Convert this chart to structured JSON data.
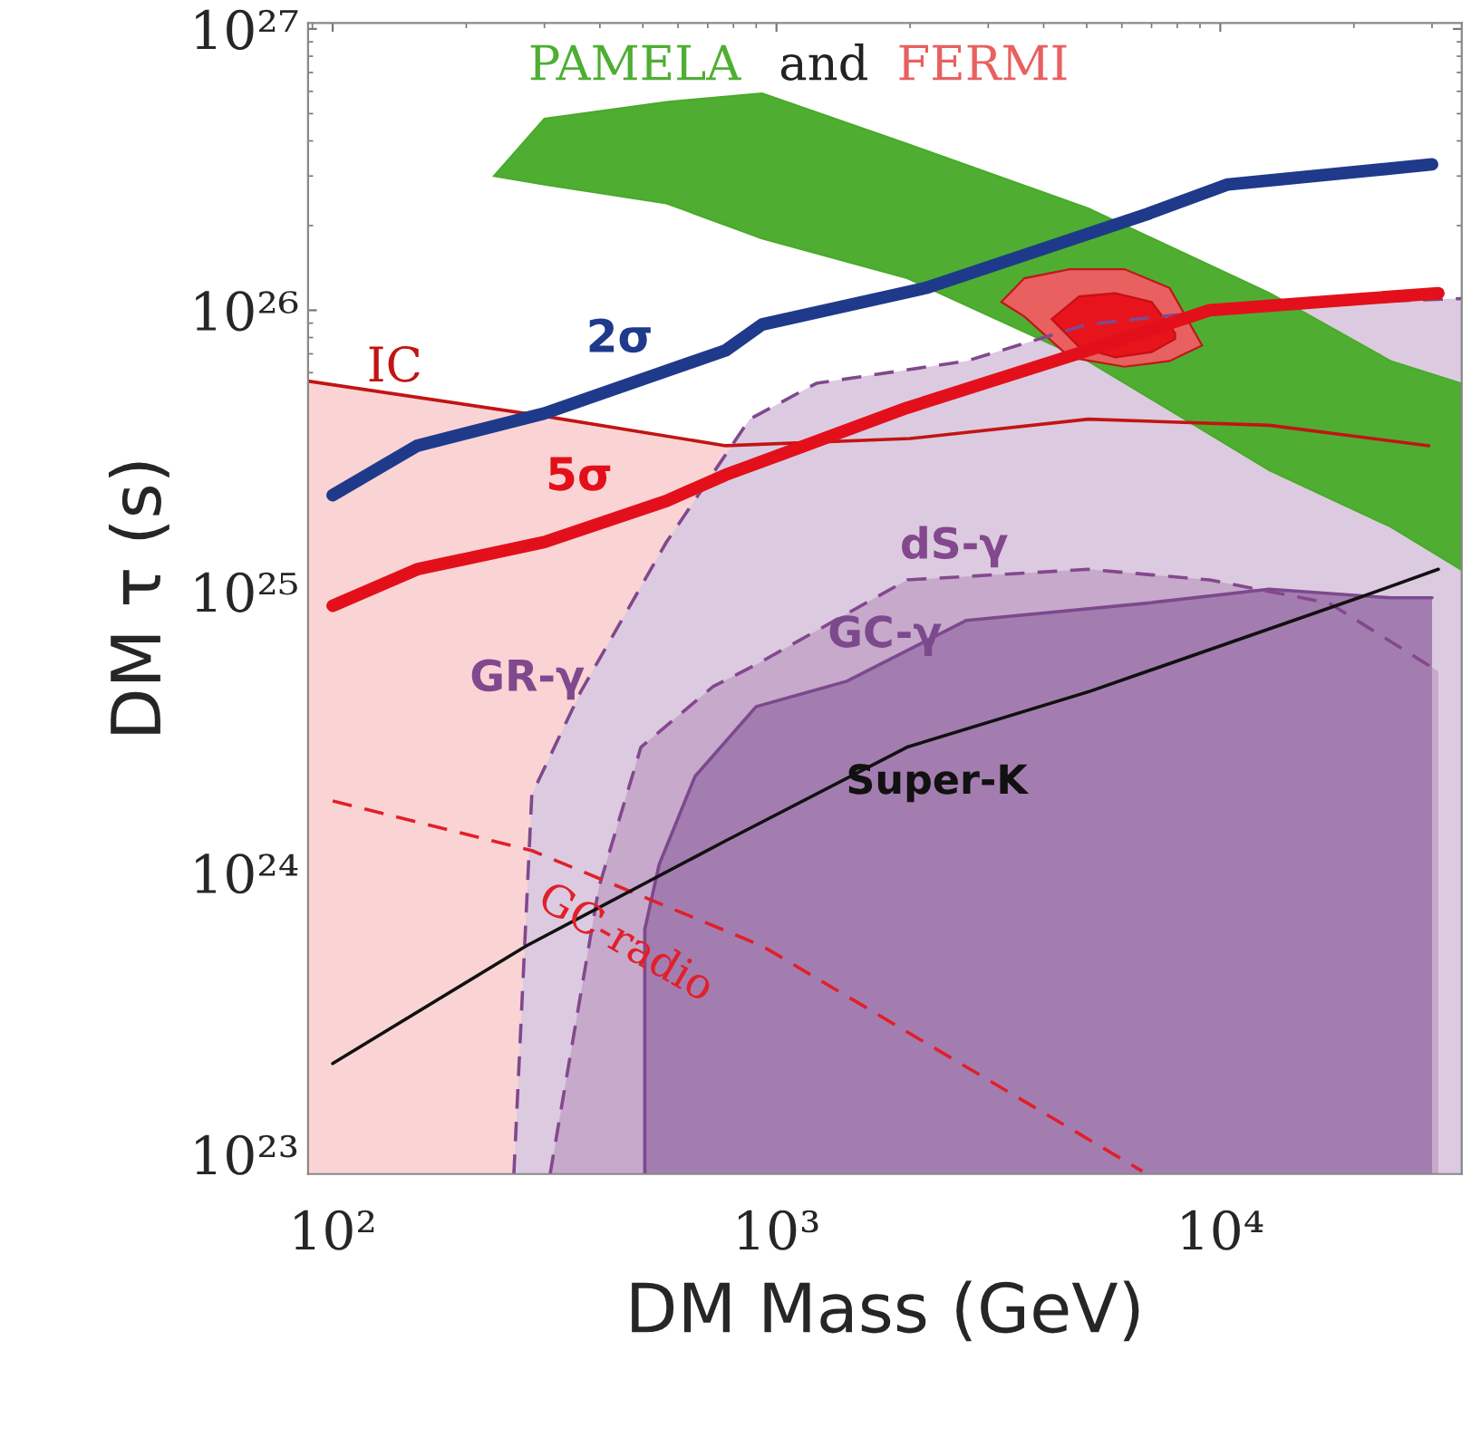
{
  "chart_data": {
    "type": "line",
    "xlabel": "DM Mass (GeV)",
    "ylabel": "DM τ (s)",
    "log": "xy",
    "grid": false,
    "legend": false,
    "xlim": [
      88,
      35000
    ],
    "ylim": [
      8.5e+22,
      1.05e+27
    ],
    "xticks": [
      {
        "value": 100,
        "label": "10²"
      },
      {
        "value": 1000,
        "label": "10³"
      },
      {
        "value": 10000,
        "label": "10⁴"
      }
    ],
    "yticks": [
      {
        "value": 1e+23,
        "label": "10²³"
      },
      {
        "value": 1e+24,
        "label": "10²⁴"
      },
      {
        "value": 1e+25,
        "label": "10²⁵"
      },
      {
        "value": 1e+26,
        "label": "10²⁶"
      },
      {
        "value": 1e+27,
        "label": "10²⁷"
      }
    ],
    "annotations": [
      "and"
    ],
    "series": [
      {
        "type": "area",
        "name": "IC",
        "color": "#fad4d4",
        "line_style": "solid",
        "x": [
          88,
          300,
          768,
          2000,
          5040,
          12900,
          29500
        ],
        "values": [
          5.6e+25,
          4.2e+25,
          3.3e+25,
          3.5e+25,
          4.1e+25,
          3.9e+25,
          3.3e+25
        ]
      },
      {
        "type": "area",
        "name": "GR-γ",
        "color": "#dccbe0",
        "line_style": "dashed",
        "x": [
          256,
          281,
          362,
          565,
          870,
          1230,
          2680,
          5000,
          10000,
          20000,
          35000
        ],
        "values": [
          8.5e+22,
          1.9e+24,
          4.4e+24,
          1.5e+25,
          4.1e+25,
          5.5e+25,
          6.6e+25,
          8.9e+25,
          1e+26,
          1.07e+26,
          1.1e+26
        ]
      },
      {
        "type": "area",
        "name": "dS-γ",
        "color": "#c7a9cc",
        "line_style": "dashed",
        "x": [
          309,
          398,
          495,
          720,
          900,
          1970,
          5040,
          9460,
          17600,
          31000
        ],
        "values": [
          8.5e+22,
          8.9e+23,
          2.8e+24,
          4.6e+24,
          5.5e+24,
          1.1e+25,
          1.2e+25,
          1.1e+25,
          9.1e+24,
          5.2e+24
        ]
      },
      {
        "type": "area",
        "name": "GC-γ",
        "color": "#a47db0",
        "line_style": "solid",
        "x": [
          505,
          505,
          544,
          655,
          900,
          1440,
          2680,
          6860,
          12900,
          24200,
          30000
        ],
        "values": [
          8.5e+22,
          6.3e+23,
          1.07e+24,
          2.2e+24,
          3.9e+24,
          4.8e+24,
          7.9e+24,
          9.1e+24,
          1.02e+25,
          9.5e+24,
          9.5e+24
        ]
      },
      {
        "type": "area",
        "name": "PAMELA",
        "color": "#4fae32",
        "x": [
          231,
          300,
          565,
          928,
          1970,
          5040,
          12900,
          24200,
          34800,
          34800,
          24200,
          12900,
          5040,
          1970,
          928,
          565,
          300,
          231
        ],
        "values": [
          3e+26,
          4.8e+26,
          5.5e+26,
          5.9e+26,
          3.9e+26,
          2.3e+26,
          1.15e+26,
          6.6e+25,
          5.5e+25,
          1.2e+25,
          1.7e+25,
          2.7e+25,
          6.6e+25,
          1.3e+26,
          1.8e+26,
          2.4e+26,
          2.8e+26,
          3e+26
        ]
      },
      {
        "type": "area",
        "name": "FERMI",
        "color": "#e8605f",
        "x": [
          3210,
          3620,
          4580,
          6080,
          7690,
          9100,
          7690,
          6080,
          4580,
          3620,
          3210
        ],
        "values": [
          1.07e+26,
          1.3e+26,
          1.4e+26,
          1.4e+26,
          1.2e+26,
          7.5e+25,
          6.6e+25,
          6.3e+25,
          6.8e+25,
          9.5e+25,
          1.07e+26
        ]
      },
      {
        "type": "area",
        "color": "#e8141c",
        "x": [
          4170,
          4810,
          5800,
          7000,
          7910,
          7910,
          7000,
          5800,
          4810,
          4170
        ],
        "values": [
          9.3e+25,
          1.12e+26,
          1.15e+26,
          1.07e+26,
          8.3e+25,
          7.9e+25,
          7.1e+25,
          6.8e+25,
          7.4e+25,
          9.3e+25
        ]
      },
      {
        "name": "GC-radio",
        "color": "#e0202a",
        "line_style": "dashed",
        "x": [
          100,
          281,
          928,
          6670
        ],
        "values": [
          1.8e+24,
          1.2e+24,
          5.5e+23,
          8.7e+22
        ]
      },
      {
        "name": "Super-K",
        "color": "#111111",
        "line_style": "solid",
        "x": [
          100,
          273,
          768,
          1970,
          5040,
          20500,
          31000
        ],
        "values": [
          2.1e+23,
          5.5e+23,
          1.3e+24,
          2.8e+24,
          4.4e+24,
          9.5e+24,
          1.2e+25
        ]
      },
      {
        "name": "2σ",
        "color": "#1f3a8a",
        "line_style": "solid",
        "x": [
          100,
          155,
          300,
          768,
          928,
          2170,
          6860,
          10400,
          30000
        ],
        "values": [
          2.2e+25,
          3.3e+25,
          4.3e+25,
          7.2e+25,
          8.9e+25,
          1.2e+26,
          2.2e+26,
          2.8e+26,
          3.3e+26
        ]
      },
      {
        "name": "5σ",
        "color": "#e3101b",
        "line_style": "solid",
        "x": [
          100,
          155,
          300,
          565,
          768,
          928,
          1970,
          5040,
          9460,
          31000
        ],
        "values": [
          8.9e+24,
          1.2e+25,
          1.5e+25,
          2.1e+25,
          2.6e+25,
          2.9e+25,
          4.5e+25,
          7.2e+25,
          1e+26,
          1.15e+26
        ]
      }
    ]
  }
}
